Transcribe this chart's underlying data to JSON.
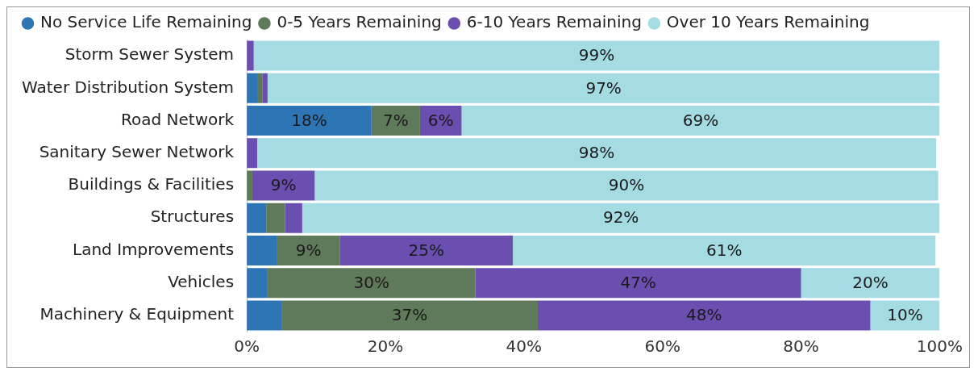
{
  "chart_data": {
    "type": "bar",
    "orientation": "horizontal",
    "stacked": true,
    "legend": "top left",
    "grid": false,
    "categories": [
      "Storm Sewer System",
      "Water Distribution System",
      "Road Network",
      "Sanitary Sewer Network",
      "Buildings & Facilities",
      "Structures",
      "Land Improvements",
      "Vehicles",
      "Machinery & Equipment"
    ],
    "xlim": [
      0,
      100
    ],
    "xticks": [
      {
        "value": 0,
        "label": "0%"
      },
      {
        "value": 20,
        "label": "20%"
      },
      {
        "value": 40,
        "label": "40%"
      },
      {
        "value": 60,
        "label": "60%"
      },
      {
        "value": 80,
        "label": "80%"
      },
      {
        "value": 100,
        "label": "100%"
      }
    ],
    "series": [
      {
        "name": "No Service Life Remaining",
        "color": "#2e75b6",
        "values": [
          0,
          1.5,
          18,
          0,
          0,
          2.8,
          4.4,
          3,
          5
        ],
        "value_labels": [
          null,
          null,
          "18%",
          null,
          null,
          null,
          null,
          null,
          null
        ]
      },
      {
        "name": "0-5 Years Remaining",
        "color": "#5f7a5a",
        "values": [
          0,
          0.8,
          7,
          0,
          0.8,
          2.7,
          9,
          30,
          37
        ],
        "value_labels": [
          null,
          null,
          "7%",
          null,
          null,
          null,
          "9%",
          "30%",
          "37%"
        ]
      },
      {
        "name": "6-10 Years Remaining",
        "color": "#6a4fb0",
        "values": [
          1,
          0.7,
          6,
          1.5,
          9,
          2.5,
          25,
          47,
          48
        ],
        "value_labels": [
          null,
          null,
          "6%",
          null,
          "9%",
          null,
          "25%",
          "47%",
          "48%"
        ]
      },
      {
        "name": "Over 10 Years Remaining",
        "color": "#a5dbe3",
        "values": [
          99,
          97,
          69,
          98,
          90,
          92,
          61,
          20,
          10
        ],
        "value_labels": [
          "99%",
          "97%",
          "69%",
          "98%",
          "90%",
          "92%",
          "61%",
          "20%",
          "10%"
        ]
      }
    ]
  }
}
